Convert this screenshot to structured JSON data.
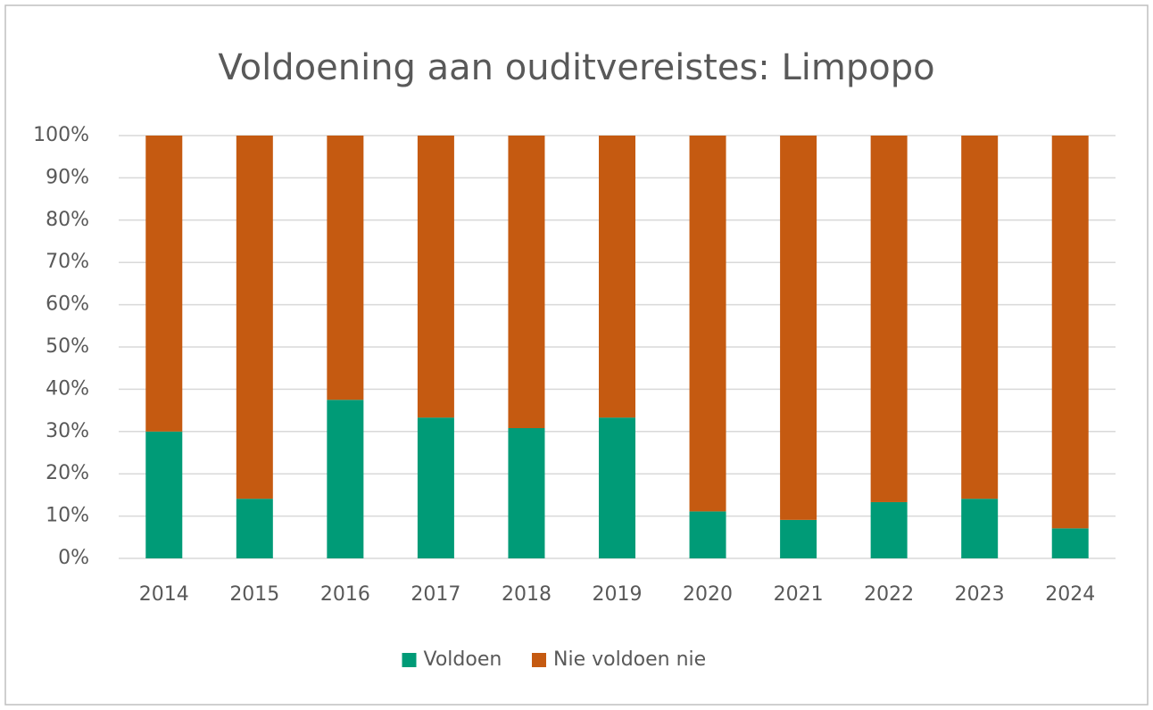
{
  "chart_data": {
    "type": "bar",
    "stacked": true,
    "title": "Voldoening aan ouditvereistes: Limpopo",
    "categories": [
      "2014",
      "2015",
      "2016",
      "2017",
      "2018",
      "2019",
      "2020",
      "2021",
      "2022",
      "2023",
      "2024"
    ],
    "series": [
      {
        "name": "Voldoen",
        "color": "#009b77",
        "values": [
          30,
          14.1,
          37.5,
          33.3,
          30.8,
          33.3,
          11.1,
          9.1,
          13.3,
          14.1,
          7.1
        ]
      },
      {
        "name": "Nie voldoen nie",
        "color": "#c55a11",
        "values": [
          70,
          85.9,
          62.5,
          66.7,
          69.2,
          66.7,
          88.9,
          90.9,
          86.7,
          85.9,
          92.9
        ]
      }
    ],
    "ylim": [
      0,
      100
    ],
    "yticks": [
      {
        "value": 0,
        "label": "0%"
      },
      {
        "value": 10,
        "label": "10%"
      },
      {
        "value": 20,
        "label": "20%"
      },
      {
        "value": 30,
        "label": "30%"
      },
      {
        "value": 40,
        "label": "40%"
      },
      {
        "value": 50,
        "label": "50%"
      },
      {
        "value": 60,
        "label": "60%"
      },
      {
        "value": 70,
        "label": "70%"
      },
      {
        "value": 80,
        "label": "80%"
      },
      {
        "value": 90,
        "label": "90%"
      },
      {
        "value": 100,
        "label": "100%"
      }
    ],
    "grid": true,
    "legend": "bottom"
  }
}
